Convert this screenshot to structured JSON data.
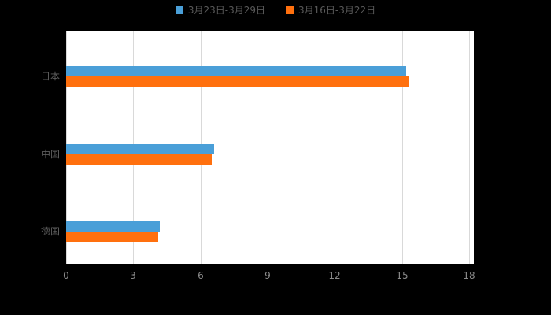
{
  "chart_data": {
    "type": "bar",
    "orientation": "horizontal",
    "title": "",
    "categories": [
      "日本",
      "中国",
      "德国"
    ],
    "series": [
      {
        "name": "3月23日-3月29日",
        "color": "#4A9FD8",
        "values": [
          15.2,
          6.6,
          4.2
        ]
      },
      {
        "name": "3月16日-3月22日",
        "color": "#FF700E",
        "values": [
          15.3,
          6.5,
          4.1
        ]
      }
    ],
    "xlim": [
      0,
      18
    ],
    "xticks": [
      "0",
      "3",
      "6",
      "9",
      "12",
      "15",
      "18"
    ],
    "grid": true,
    "legend_position": "top",
    "background": "#000000",
    "plot_background": "#FFFFFF",
    "grid_color": "#D9D9D9",
    "tick_text_color": "#8A8A8A",
    "category_text_color": "#5E5E5E",
    "legend_text_color": "#595959"
  }
}
